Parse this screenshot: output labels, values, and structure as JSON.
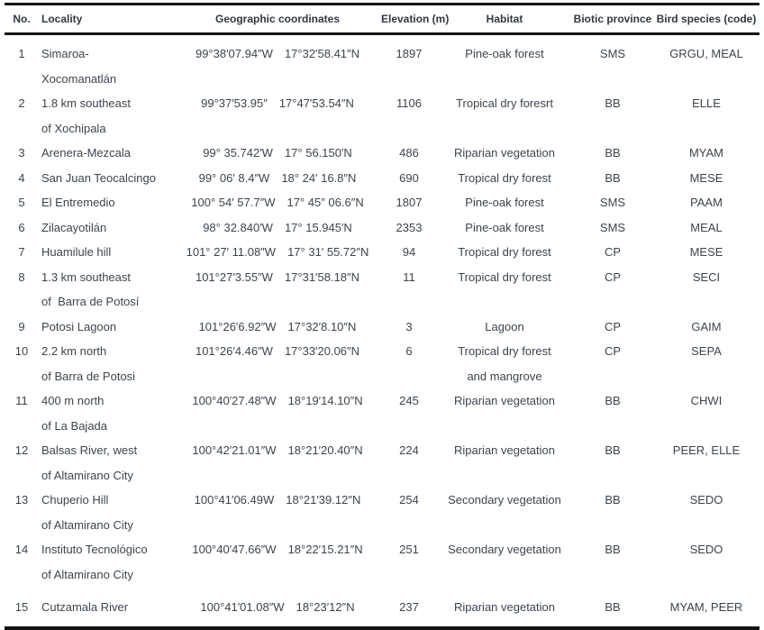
{
  "colors": {
    "text": "#3b454f",
    "header_text": "#2f3943",
    "border": "#141414",
    "background": "#ffffff"
  },
  "table": {
    "columns": [
      "No.",
      "Locality",
      "Geographic coordinates",
      "Elevation (m)",
      "Habitat",
      "Biotic province",
      "Bird species (code)"
    ],
    "rows": [
      {
        "no": "1",
        "locality_lines": [
          "Simaroa-",
          "Xocomanatlán"
        ],
        "longitude": "99°38′07.94″W",
        "latitude": "17°32′58.41″N",
        "elevation": "1897",
        "habitat_lines": [
          "Pine-oak forest"
        ],
        "biotic_province": "SMS",
        "bird_species": "GRGU, MEAL"
      },
      {
        "no": "2",
        "locality_lines": [
          "1.8 km southeast",
          "of Xochipala"
        ],
        "longitude": "99°37′53.95″",
        "latitude": "17°47′53.54″N",
        "elevation": "1106",
        "habitat_lines": [
          "Tropical dry foresrt"
        ],
        "biotic_province": "BB",
        "bird_species": "ELLE"
      },
      {
        "no": "3",
        "locality_lines": [
          "Arenera-Mezcala"
        ],
        "longitude": "99° 35.742′W",
        "latitude": "17° 56.150′N",
        "elevation": "486",
        "habitat_lines": [
          "Riparian vegetation"
        ],
        "biotic_province": "BB",
        "bird_species": "MYAM"
      },
      {
        "no": "4",
        "locality_lines": [
          "San Juan Teocalcingo"
        ],
        "longitude": "99° 06′ 8.4″W",
        "latitude": "18° 24′ 16.8″N",
        "elevation": "690",
        "habitat_lines": [
          "Tropical dry forest"
        ],
        "biotic_province": "BB",
        "bird_species": "MESE"
      },
      {
        "no": "5",
        "locality_lines": [
          "El Entremedio"
        ],
        "longitude": "100° 54′ 57.7″W",
        "latitude": "17° 45″ 06.6″N",
        "elevation": "1807",
        "habitat_lines": [
          "Pine-oak forest"
        ],
        "biotic_province": "SMS",
        "bird_species": "PAAM"
      },
      {
        "no": "6",
        "locality_lines": [
          "Zilacayotilán"
        ],
        "longitude": "98° 32.840′W",
        "latitude": "17° 15.945′N",
        "elevation": "2353",
        "habitat_lines": [
          "Pine-oak forest"
        ],
        "biotic_province": "SMS",
        "bird_species": "MEAL"
      },
      {
        "no": "7",
        "locality_lines": [
          "Huamilule hill"
        ],
        "longitude": "101° 27′ 11.08″W",
        "latitude": "17° 31′ 55.72″N",
        "elevation": "94",
        "habitat_lines": [
          "Tropical dry forest"
        ],
        "biotic_province": "CP",
        "bird_species": "MESE"
      },
      {
        "no": "8",
        "locality_lines": [
          "1.3 km southeast",
          "of  Barra de Potosí"
        ],
        "longitude": "101°27′3.55″W",
        "latitude": "17°31′58.18″N",
        "elevation": "11",
        "habitat_lines": [
          "Tropical dry forest"
        ],
        "biotic_province": "CP",
        "bird_species": "SECI"
      },
      {
        "no": "9",
        "locality_lines": [
          "Potosi Lagoon"
        ],
        "longitude": "101°26′6.92″W",
        "latitude": "17°32′8.10″N",
        "elevation": "3",
        "habitat_lines": [
          "Lagoon"
        ],
        "biotic_province": "CP",
        "bird_species": "GAIM"
      },
      {
        "no": "10",
        "locality_lines": [
          "2.2 km north",
          "of Barra de Potosi"
        ],
        "longitude": "101°26′4.46″W",
        "latitude": "17°33′20.06″N",
        "elevation": "6",
        "habitat_lines": [
          "Tropical dry forest",
          "and mangrove"
        ],
        "biotic_province": "CP",
        "bird_species": "SEPA"
      },
      {
        "no": "11",
        "locality_lines": [
          "400 m north",
          "of La Bajada"
        ],
        "longitude": "100°40′27.48″W",
        "latitude": "18°19′14.10″N",
        "elevation": "245",
        "habitat_lines": [
          "Riparian vegetation"
        ],
        "biotic_province": "BB",
        "bird_species": "CHWI"
      },
      {
        "no": "12",
        "locality_lines": [
          "Balsas River, west",
          "of Altamirano City"
        ],
        "longitude": "100°42′21.01″W",
        "latitude": "18°21′20.40″N",
        "elevation": "224",
        "habitat_lines": [
          "Riparian vegetation"
        ],
        "biotic_province": "BB",
        "bird_species": "PEER, ELLE"
      },
      {
        "no": "13",
        "locality_lines": [
          "Chuperio Hill",
          "of Altamirano City"
        ],
        "longitude": "100°41′06.49W",
        "latitude": "18°21′39.12″N",
        "elevation": "254",
        "habitat_lines": [
          "Secondary vegetation"
        ],
        "biotic_province": "BB",
        "bird_species": "SEDO"
      },
      {
        "no": "14",
        "locality_lines": [
          "Instituto Tecnológico",
          "of Altamirano City"
        ],
        "longitude": "100°40′47.66″W",
        "latitude": "18°22′15.21″N",
        "elevation": "251",
        "habitat_lines": [
          "Secondary vegetation"
        ],
        "biotic_province": "BB",
        "bird_species": "SEDO"
      },
      {
        "no": "15",
        "locality_lines": [
          "Cutzamala River"
        ],
        "longitude": "100°41′01.08″W",
        "latitude": "18°23′12″N",
        "elevation": "237",
        "habitat_lines": [
          "Riparian vegetation"
        ],
        "biotic_province": "BB",
        "bird_species": "MYAM, PEER"
      }
    ]
  }
}
